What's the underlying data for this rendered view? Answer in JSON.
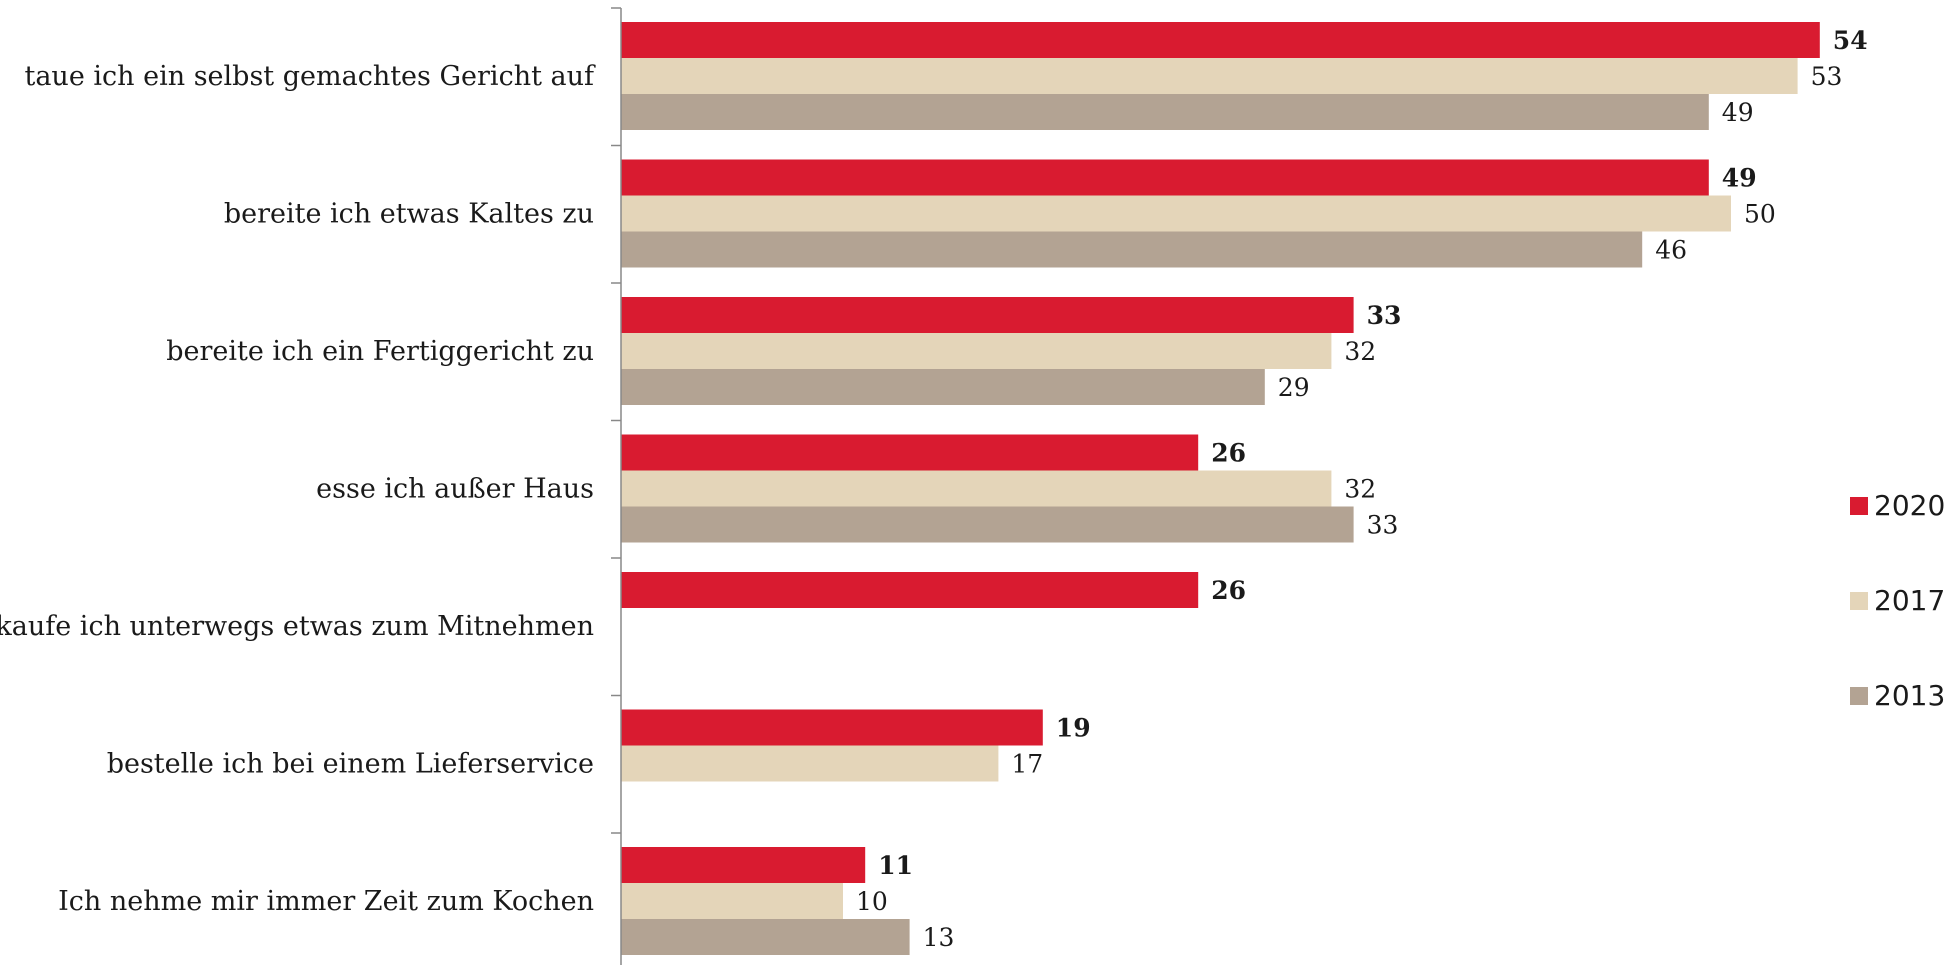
{
  "chart_data": {
    "type": "bar",
    "orientation": "horizontal",
    "categories": [
      "taue ich ein selbst gemachtes Gericht auf",
      "bereite ich etwas Kaltes zu",
      "bereite ich ein Fertiggericht zu",
      "esse ich außer Haus",
      "kaufe ich unterwegs etwas zum Mitnehmen",
      "bestelle ich bei einem Lieferservice",
      "Ich nehme mir immer Zeit zum Kochen"
    ],
    "series": [
      {
        "name": "2020",
        "color": "#d91b30",
        "values": [
          54,
          49,
          33,
          26,
          26,
          19,
          11
        ]
      },
      {
        "name": "2017",
        "color": "#e4d5b9",
        "values": [
          53,
          50,
          32,
          32,
          null,
          17,
          10
        ]
      },
      {
        "name": "2013",
        "color": "#b3a393",
        "values": [
          49,
          46,
          29,
          33,
          null,
          null,
          13
        ]
      }
    ],
    "xlim": [
      0,
      58
    ],
    "grid": false,
    "legend_position": "right",
    "title": "",
    "xlabel": "",
    "ylabel": ""
  }
}
